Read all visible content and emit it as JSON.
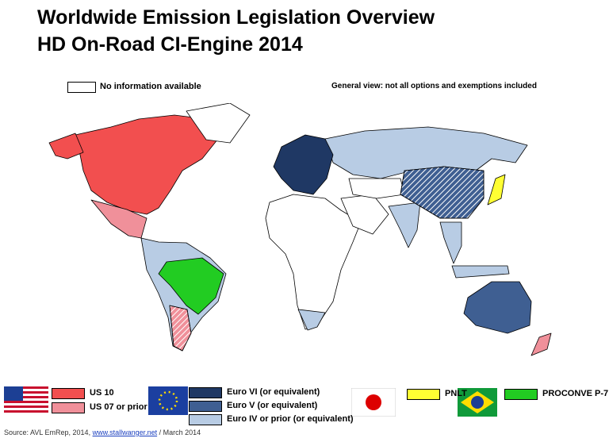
{
  "title": [
    "Worldwide Emission Legislation Overview",
    "HD On-Road CI-Engine 2014"
  ],
  "no_info_legend": "No information available",
  "note": "General view: not all options and exemptions included",
  "legend": [
    {
      "label": "US 10",
      "color": "#f24f4f"
    },
    {
      "label": "US 07 or prior",
      "color": "#f0909a"
    },
    {
      "label": "Euro VI (or equivalent)",
      "color": "#1f3864"
    },
    {
      "label": "Euro V (or equivalent)",
      "color": "#3f5f92"
    },
    {
      "label": "Euro IV or prior (or equivalent)",
      "color": "#b8cce4"
    },
    {
      "label": "PNLT",
      "color": "#ffff33"
    },
    {
      "label": "PROCONVE P-7",
      "color": "#22cc22"
    }
  ],
  "source": {
    "text": "Source: AVL EmRep, 2014, ",
    "link": "www.stallwanger.net",
    "date": " / March 2014"
  }
}
